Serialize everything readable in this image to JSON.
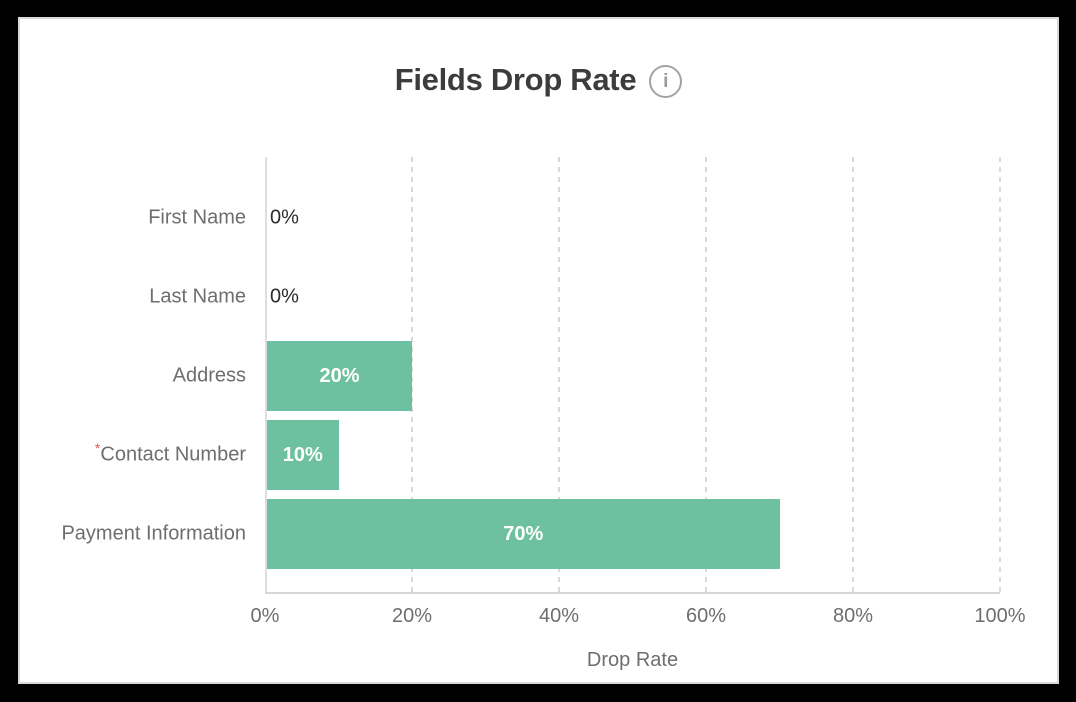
{
  "header": {
    "title": "Fields Drop Rate",
    "info_icon_glyph": "i"
  },
  "chart_data": {
    "type": "bar",
    "orientation": "horizontal",
    "title": "Fields Drop Rate",
    "xlabel": "Drop Rate",
    "ylabel": "",
    "categories": [
      "First Name",
      "Last Name",
      "Address",
      "Contact Number",
      "Payment Information"
    ],
    "required_flags": [
      false,
      false,
      false,
      true,
      false
    ],
    "required_marker": "*",
    "values": [
      0,
      0,
      20,
      10,
      70
    ],
    "value_labels": [
      "0%",
      "0%",
      "20%",
      "10%",
      "70%"
    ],
    "x_tick_values": [
      0,
      20,
      40,
      60,
      80,
      100
    ],
    "x_tick_labels": [
      "0%",
      "20%",
      "40%",
      "60%",
      "80%",
      "100%"
    ],
    "xlim": [
      0,
      100
    ],
    "grid": "vertical-dashed",
    "legend": "none",
    "colors": {
      "bar": "#6ec1a0",
      "bar_value_label": "#ffffff",
      "zero_value_label": "#2b2b2b",
      "category_label": "#6e6e6e",
      "tick_label": "#6e6e6e",
      "axis_line": "#d9d9d9",
      "required_marker": "#e4564c",
      "title": "#3c3c3c"
    }
  }
}
